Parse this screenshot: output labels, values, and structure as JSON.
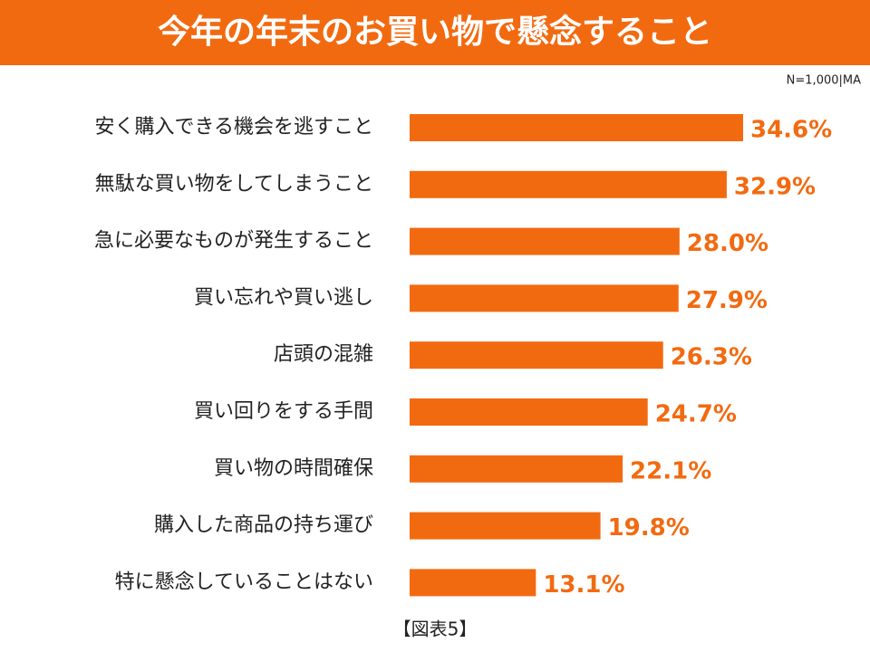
{
  "chart_data": {
    "type": "bar",
    "orientation": "horizontal",
    "title": "今年の年末のお買い物で懸念すること",
    "note": "N=1,000|MA",
    "caption": "【図表5】",
    "color": "#f26a10",
    "categories": [
      "安く購入できる機会を逃すこと",
      "無駄な買い物をしてしまうこと",
      "急に必要なものが発生すること",
      "買い忘れや買い逃し",
      "店頭の混雑",
      "買い回りをする手間",
      "買い物の時間確保",
      "購入した商品の持ち運び",
      "特に懸念していることはない"
    ],
    "values": [
      34.6,
      32.9,
      28.0,
      27.9,
      26.3,
      24.7,
      22.1,
      19.8,
      13.1
    ],
    "value_labels": [
      "34.6%",
      "32.9%",
      "28.0%",
      "27.9%",
      "26.3%",
      "24.7%",
      "22.1%",
      "19.8%",
      "13.1%"
    ]
  }
}
